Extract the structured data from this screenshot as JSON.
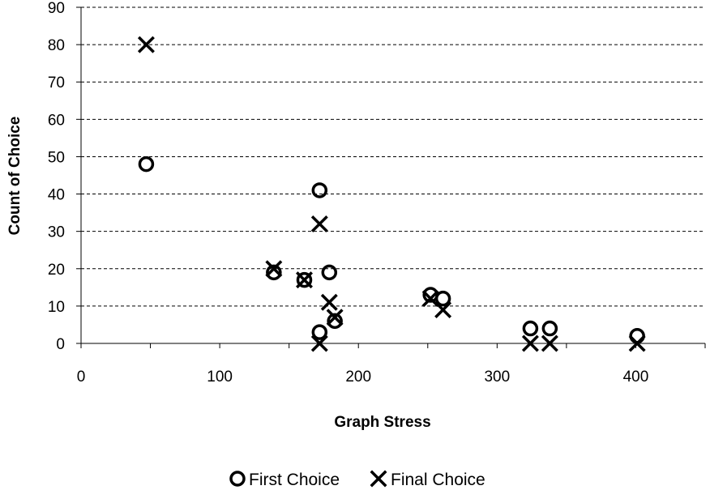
{
  "chart_data": {
    "type": "scatter",
    "title": "",
    "xlabel": "Graph Stress",
    "ylabel": "Count of Choice",
    "xlim": [
      0,
      450
    ],
    "ylim": [
      0,
      90
    ],
    "x_ticks": [
      0,
      100,
      200,
      300,
      400
    ],
    "y_ticks": [
      0,
      10,
      20,
      30,
      40,
      50,
      60,
      70,
      80,
      90
    ],
    "grid": "horizontal dashed",
    "legend_position": "bottom",
    "series": [
      {
        "name": "First Choice",
        "marker": "circle",
        "points": [
          {
            "x": 47,
            "y": 48
          },
          {
            "x": 139,
            "y": 19
          },
          {
            "x": 161,
            "y": 17
          },
          {
            "x": 172,
            "y": 41
          },
          {
            "x": 172,
            "y": 3
          },
          {
            "x": 179,
            "y": 19
          },
          {
            "x": 183,
            "y": 6
          },
          {
            "x": 252,
            "y": 13
          },
          {
            "x": 261,
            "y": 12
          },
          {
            "x": 324,
            "y": 4
          },
          {
            "x": 338,
            "y": 4
          },
          {
            "x": 401,
            "y": 2
          }
        ]
      },
      {
        "name": "Final Choice",
        "marker": "x",
        "points": [
          {
            "x": 47,
            "y": 80
          },
          {
            "x": 139,
            "y": 20
          },
          {
            "x": 161,
            "y": 17
          },
          {
            "x": 172,
            "y": 32
          },
          {
            "x": 172,
            "y": 0
          },
          {
            "x": 179,
            "y": 11
          },
          {
            "x": 183,
            "y": 7
          },
          {
            "x": 252,
            "y": 12
          },
          {
            "x": 261,
            "y": 9
          },
          {
            "x": 324,
            "y": 0
          },
          {
            "x": 338,
            "y": 0
          },
          {
            "x": 401,
            "y": 0
          }
        ]
      }
    ]
  }
}
